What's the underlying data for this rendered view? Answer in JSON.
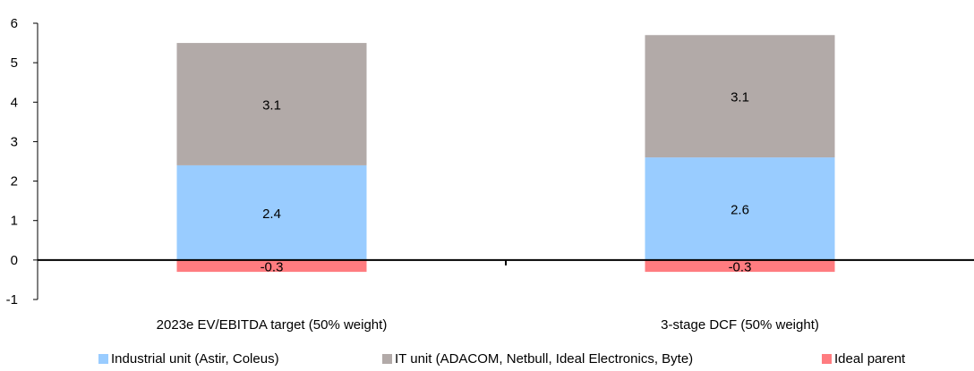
{
  "chart_data": {
    "type": "bar",
    "stacked": true,
    "categories": [
      "2023e EV/EBITDA target (50% weight)",
      "3-stage DCF (50% weight)"
    ],
    "series": [
      {
        "name": "Industrial unit (Astir, Coleus)",
        "values": [
          2.4,
          2.6
        ],
        "color": "#99ccff",
        "labels": [
          "2.4",
          "2.6"
        ]
      },
      {
        "name": "IT unit (ADACOM, Netbull, Ideal Electronics, Byte)",
        "values": [
          3.1,
          3.1
        ],
        "color": "#b2aaa8",
        "labels": [
          "3.1",
          "3.1"
        ]
      },
      {
        "name": "Ideal parent",
        "values": [
          -0.3,
          -0.3
        ],
        "color": "#ff7c80",
        "labels": [
          "-0.3",
          "-0.3"
        ]
      }
    ],
    "ylim": [
      -1,
      6
    ],
    "yticks": [
      "-1",
      "0",
      "1",
      "2",
      "3",
      "4",
      "5",
      "6"
    ],
    "title": "",
    "xlabel": "",
    "ylabel": "",
    "grid": false,
    "legend": "bottom"
  }
}
